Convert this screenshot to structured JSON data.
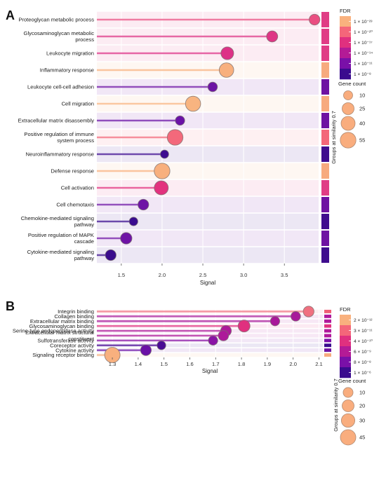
{
  "chart_data": [
    {
      "panel_label": "A",
      "type": "lollipop",
      "xlabel": "Signal",
      "x_ticks": [
        1.5,
        2.0,
        2.5,
        3.0,
        3.5
      ],
      "x_tick_labels": [
        "1.5",
        "2.0",
        "2.5",
        "3.0",
        "3.5"
      ],
      "xlim": [
        1.2,
        3.92
      ],
      "grid": true,
      "legend_position": "right",
      "group_label": "Groups at similarity 0.7",
      "fdr_legend": {
        "title": "FDR",
        "labels": [
          "1 × 10⁻²³",
          "1 × 10⁻²⁰",
          "1 × 10⁻¹⁷",
          "1 × 10⁻¹⁴",
          "1 × 10⁻¹¹",
          "1 × 10⁻⁸"
        ],
        "colors": [
          "#f9b17e",
          "#f4667a",
          "#e0307f",
          "#b41b96",
          "#7a10a8",
          "#3a0b8e"
        ]
      },
      "size_legend": {
        "title": "Gene count",
        "values": [
          10,
          25,
          40,
          55
        ]
      },
      "terms": [
        {
          "label": "Proteoglycan metabolic process",
          "signal": 3.87,
          "gene_count": 18,
          "color": "#ea4f82",
          "group_color": "#e03d85"
        },
        {
          "label": "Glycosaminoglycan metabolic process",
          "signal": 3.35,
          "gene_count": 20,
          "color": "#de3585",
          "group_color": "#e03d85"
        },
        {
          "label": "Leukocyte migration",
          "signal": 2.8,
          "gene_count": 30,
          "color": "#dd3187",
          "group_color": "#e03d85"
        },
        {
          "label": "Inflammatory response",
          "signal": 2.79,
          "gene_count": 44,
          "color": "#f8b07e",
          "group_color": "#f7aa7e"
        },
        {
          "label": "Leukocyte cell-cell adhesion",
          "signal": 2.62,
          "gene_count": 12,
          "color": "#6d14a4",
          "group_color": "#6e12a2"
        },
        {
          "label": "Cell migration",
          "signal": 2.38,
          "gene_count": 50,
          "color": "#f8b480",
          "group_color": "#f7aa7e"
        },
        {
          "label": "Extracellular matrix disassembly",
          "signal": 2.22,
          "gene_count": 11,
          "color": "#6a12a6",
          "group_color": "#6e12a2"
        },
        {
          "label": "Positive regulation of immune system process",
          "signal": 2.16,
          "gene_count": 55,
          "color": "#f3697b",
          "group_color": "#f36779"
        },
        {
          "label": "Neuroinflammatory response",
          "signal": 2.03,
          "gene_count": 7,
          "color": "#3e0c90",
          "group_color": "#3f0d8e"
        },
        {
          "label": "Defense response",
          "signal": 2.0,
          "gene_count": 55,
          "color": "#f8b07e",
          "group_color": "#f7aa7e"
        },
        {
          "label": "Cell activation",
          "signal": 1.99,
          "gene_count": 40,
          "color": "#e2327e",
          "group_color": "#e03d85"
        },
        {
          "label": "Cell chemotaxis",
          "signal": 1.77,
          "gene_count": 18,
          "color": "#6e14a5",
          "group_color": "#6e12a2"
        },
        {
          "label": "Chemokine-mediated signaling pathway",
          "signal": 1.65,
          "gene_count": 8,
          "color": "#3a0c8f",
          "group_color": "#3f0d8e"
        },
        {
          "label": "Positive regulation of MAPK cascade",
          "signal": 1.56,
          "gene_count": 22,
          "color": "#6f14a5",
          "group_color": "#6e12a2"
        },
        {
          "label": "Cytokine-mediated signaling pathway",
          "signal": 1.37,
          "gene_count": 18,
          "color": "#3a0c8c",
          "group_color": "#3f0d8e"
        }
      ]
    },
    {
      "panel_label": "B",
      "type": "lollipop",
      "xlabel": "Signal",
      "x_ticks": [
        1.3,
        1.4,
        1.5,
        1.6,
        1.7,
        1.8,
        1.9,
        2.0,
        2.1
      ],
      "x_tick_labels": [
        "1.3",
        "1.4",
        "1.5",
        "1.6",
        "1.7",
        "1.8",
        "1.9",
        "2.0",
        "2.1"
      ],
      "xlim": [
        1.24,
        2.115
      ],
      "grid": true,
      "legend_position": "right",
      "group_label": "Groups at similarity 0.7",
      "fdr_legend": {
        "title": "FDR",
        "labels": [
          "2 × 10⁻¹²",
          "3 × 10⁻¹¹",
          "4 × 10⁻¹⁰",
          "6 × 10⁻⁹",
          "8 × 10⁻⁸",
          "1 × 10⁻⁶"
        ],
        "colors": [
          "#f9b17e",
          "#f4667a",
          "#e0307f",
          "#b41b96",
          "#7a10a8",
          "#3a0b8e"
        ]
      },
      "size_legend": {
        "title": "Gene count",
        "values": [
          10,
          20,
          30,
          45
        ]
      },
      "terms": [
        {
          "label": "Integrin binding",
          "signal": 2.06,
          "gene_count": 14,
          "color": "#f07080",
          "group_color": "#f05f76"
        },
        {
          "label": "Collagen binding",
          "signal": 2.01,
          "gene_count": 9,
          "color": "#a8199a",
          "group_color": "#b0189b"
        },
        {
          "label": "Extracellular matrix binding",
          "signal": 1.93,
          "gene_count": 8,
          "color": "#a8199a",
          "group_color": "#b0189b"
        },
        {
          "label": "Glycosaminoglycan binding",
          "signal": 1.81,
          "gene_count": 20,
          "color": "#e0307f",
          "group_color": "#e0307f"
        },
        {
          "label": "Serine-type endopeptidase activity",
          "signal": 1.74,
          "gene_count": 14,
          "color": "#ad1a9a",
          "group_color": "#b0189b"
        },
        {
          "label": "Extracellular matrix structural constituent",
          "signal": 1.73,
          "gene_count": 12,
          "color": "#ad1a9a",
          "group_color": "#b0189b"
        },
        {
          "label": "Sulfotransferase activity",
          "signal": 1.69,
          "gene_count": 8,
          "color": "#8a14a6",
          "group_color": "#7a10a8"
        },
        {
          "label": "Coreceptor activity",
          "signal": 1.49,
          "gene_count": 6,
          "color": "#4a0c95",
          "group_color": "#3a0b8e"
        },
        {
          "label": "Cytokine activity",
          "signal": 1.43,
          "gene_count": 14,
          "color": "#6a12a6",
          "group_color": "#6e12a2"
        },
        {
          "label": "Signaling receptor binding",
          "signal": 1.3,
          "gene_count": 45,
          "color": "#f8b07e",
          "group_color": "#f7aa7e"
        }
      ]
    }
  ]
}
